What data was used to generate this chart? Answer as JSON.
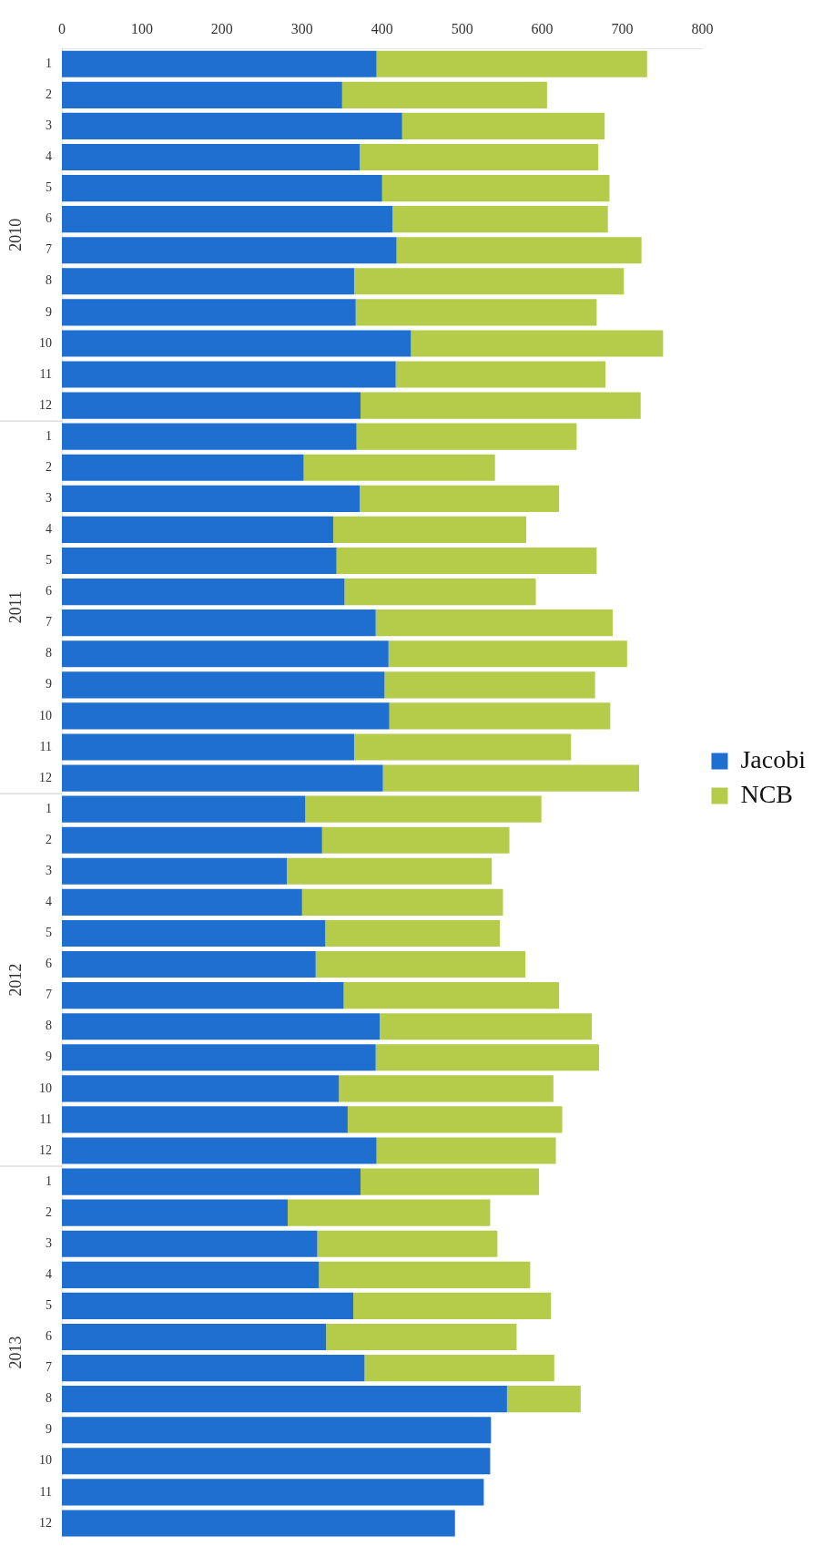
{
  "chart_data": {
    "type": "bar",
    "orientation": "horizontal",
    "stacked": true,
    "categories": [
      "1",
      "2",
      "3",
      "4",
      "5",
      "6",
      "7",
      "8",
      "9",
      "10",
      "11",
      "12",
      "1",
      "2",
      "3",
      "4",
      "5",
      "6",
      "7",
      "8",
      "9",
      "10",
      "11",
      "12",
      "1",
      "2",
      "3",
      "4",
      "5",
      "6",
      "7",
      "8",
      "9",
      "10",
      "11",
      "12",
      "1",
      "2",
      "3",
      "4",
      "5",
      "6",
      "7",
      "8",
      "9",
      "10",
      "11",
      "12"
    ],
    "series": [
      {
        "name": "Jacobi",
        "color": "#1f6fd0",
        "values": [
          393,
          350,
          425,
          372,
          400,
          413,
          418,
          365,
          367,
          436,
          417,
          373,
          368,
          302,
          372,
          339,
          343,
          353,
          392,
          408,
          403,
          409,
          365,
          401,
          304,
          325,
          281,
          300,
          329,
          317,
          352,
          397,
          392,
          346,
          357,
          393,
          373,
          282,
          319,
          321,
          364,
          330,
          378,
          556,
          536,
          535,
          527,
          491
        ]
      },
      {
        "name": "NCB",
        "color": "#b5cc4a",
        "values": [
          338,
          256,
          253,
          298,
          284,
          269,
          306,
          337,
          301,
          315,
          262,
          350,
          275,
          239,
          249,
          241,
          325,
          239,
          296,
          298,
          263,
          276,
          271,
          320,
          295,
          234,
          256,
          251,
          218,
          262,
          269,
          265,
          279,
          268,
          268,
          224,
          223,
          253,
          225,
          264,
          247,
          238,
          237,
          92,
          null,
          null,
          null,
          null
        ]
      }
    ],
    "annotations": [
      "2010",
      "2011",
      "2012",
      "2013"
    ],
    "xlim": [
      0,
      800
    ],
    "xticks": [
      0,
      100,
      200,
      300,
      400,
      500,
      600,
      700,
      800
    ],
    "legend": "right",
    "grid": false
  }
}
